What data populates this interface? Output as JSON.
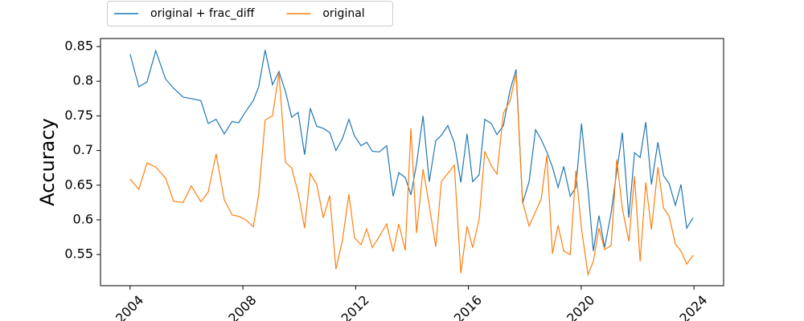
{
  "chart_data": {
    "type": "line",
    "y_label": "Accuracy",
    "legend_position": "upper left",
    "x": [
      2004.0,
      2004.31,
      2004.6,
      2004.91,
      2005.26,
      2005.54,
      2005.88,
      2006.17,
      2006.51,
      2006.77,
      2007.05,
      2007.34,
      2007.62,
      2007.85,
      2008.11,
      2008.37,
      2008.56,
      2008.79,
      2009.05,
      2009.28,
      2009.51,
      2009.73,
      2009.96,
      2010.19,
      2010.39,
      2010.62,
      2010.85,
      2011.08,
      2011.3,
      2011.53,
      2011.76,
      2011.96,
      2012.19,
      2012.39,
      2012.59,
      2012.84,
      2013.1,
      2013.33,
      2013.53,
      2013.76,
      2013.96,
      2014.16,
      2014.39,
      2014.61,
      2014.84,
      2015.04,
      2015.27,
      2015.5,
      2015.73,
      2015.95,
      2016.15,
      2016.38,
      2016.58,
      2016.81,
      2017.01,
      2017.24,
      2017.47,
      2017.69,
      2017.92,
      2018.15,
      2018.38,
      2018.58,
      2018.78,
      2018.98,
      2019.18,
      2019.38,
      2019.61,
      2019.81,
      2020.01,
      2020.24,
      2020.43,
      2020.63,
      2020.83,
      2021.06,
      2021.26,
      2021.46,
      2021.69,
      2021.89,
      2022.09,
      2022.29,
      2022.49,
      2022.72,
      2022.92,
      2023.12,
      2023.34,
      2023.54,
      2023.74,
      2023.97
    ],
    "series": [
      {
        "name": "original + frac_diff",
        "color": "#1f77b4",
        "values": [
          0.839,
          0.792,
          0.799,
          0.844,
          0.803,
          0.79,
          0.777,
          0.775,
          0.772,
          0.739,
          0.745,
          0.724,
          0.742,
          0.74,
          0.757,
          0.772,
          0.792,
          0.845,
          0.795,
          0.814,
          0.785,
          0.748,
          0.755,
          0.694,
          0.761,
          0.735,
          0.732,
          0.726,
          0.7,
          0.717,
          0.745,
          0.721,
          0.707,
          0.712,
          0.699,
          0.698,
          0.707,
          0.634,
          0.668,
          0.661,
          0.636,
          0.681,
          0.75,
          0.655,
          0.714,
          0.722,
          0.736,
          0.711,
          0.654,
          0.724,
          0.655,
          0.665,
          0.745,
          0.739,
          0.723,
          0.736,
          0.786,
          0.817,
          0.624,
          0.655,
          0.73,
          0.716,
          0.698,
          0.676,
          0.647,
          0.677,
          0.634,
          0.647,
          0.739,
          0.645,
          0.555,
          0.606,
          0.56,
          0.61,
          0.67,
          0.726,
          0.603,
          0.697,
          0.69,
          0.741,
          0.651,
          0.712,
          0.664,
          0.652,
          0.621,
          0.651,
          0.588,
          0.603
        ]
      },
      {
        "name": "original",
        "color": "#ff7f0e",
        "values": [
          0.659,
          0.644,
          0.682,
          0.676,
          0.66,
          0.627,
          0.625,
          0.649,
          0.626,
          0.64,
          0.695,
          0.629,
          0.607,
          0.605,
          0.6,
          0.59,
          0.636,
          0.744,
          0.75,
          0.812,
          0.683,
          0.675,
          0.639,
          0.588,
          0.667,
          0.651,
          0.603,
          0.635,
          0.529,
          0.57,
          0.637,
          0.574,
          0.564,
          0.587,
          0.56,
          0.576,
          0.594,
          0.554,
          0.594,
          0.556,
          0.732,
          0.581,
          0.673,
          0.621,
          0.561,
          0.655,
          0.667,
          0.679,
          0.523,
          0.591,
          0.56,
          0.601,
          0.699,
          0.678,
          0.666,
          0.754,
          0.771,
          0.811,
          0.626,
          0.591,
          0.612,
          0.63,
          0.693,
          0.551,
          0.592,
          0.555,
          0.55,
          0.671,
          0.587,
          0.521,
          0.54,
          0.588,
          0.557,
          0.563,
          0.687,
          0.616,
          0.569,
          0.663,
          0.54,
          0.654,
          0.586,
          0.676,
          0.617,
          0.605,
          0.565,
          0.555,
          0.536,
          0.549
        ]
      }
    ],
    "xlim": [
      2002.95,
      2025.05
    ],
    "xticks": [
      2004,
      2008,
      2012,
      2016,
      2020,
      2024
    ],
    "ylim": [
      0.505,
      0.8616
    ],
    "yticks": [
      0.55,
      0.6,
      0.65,
      0.7,
      0.75,
      0.8,
      0.85
    ],
    "grid": false
  }
}
